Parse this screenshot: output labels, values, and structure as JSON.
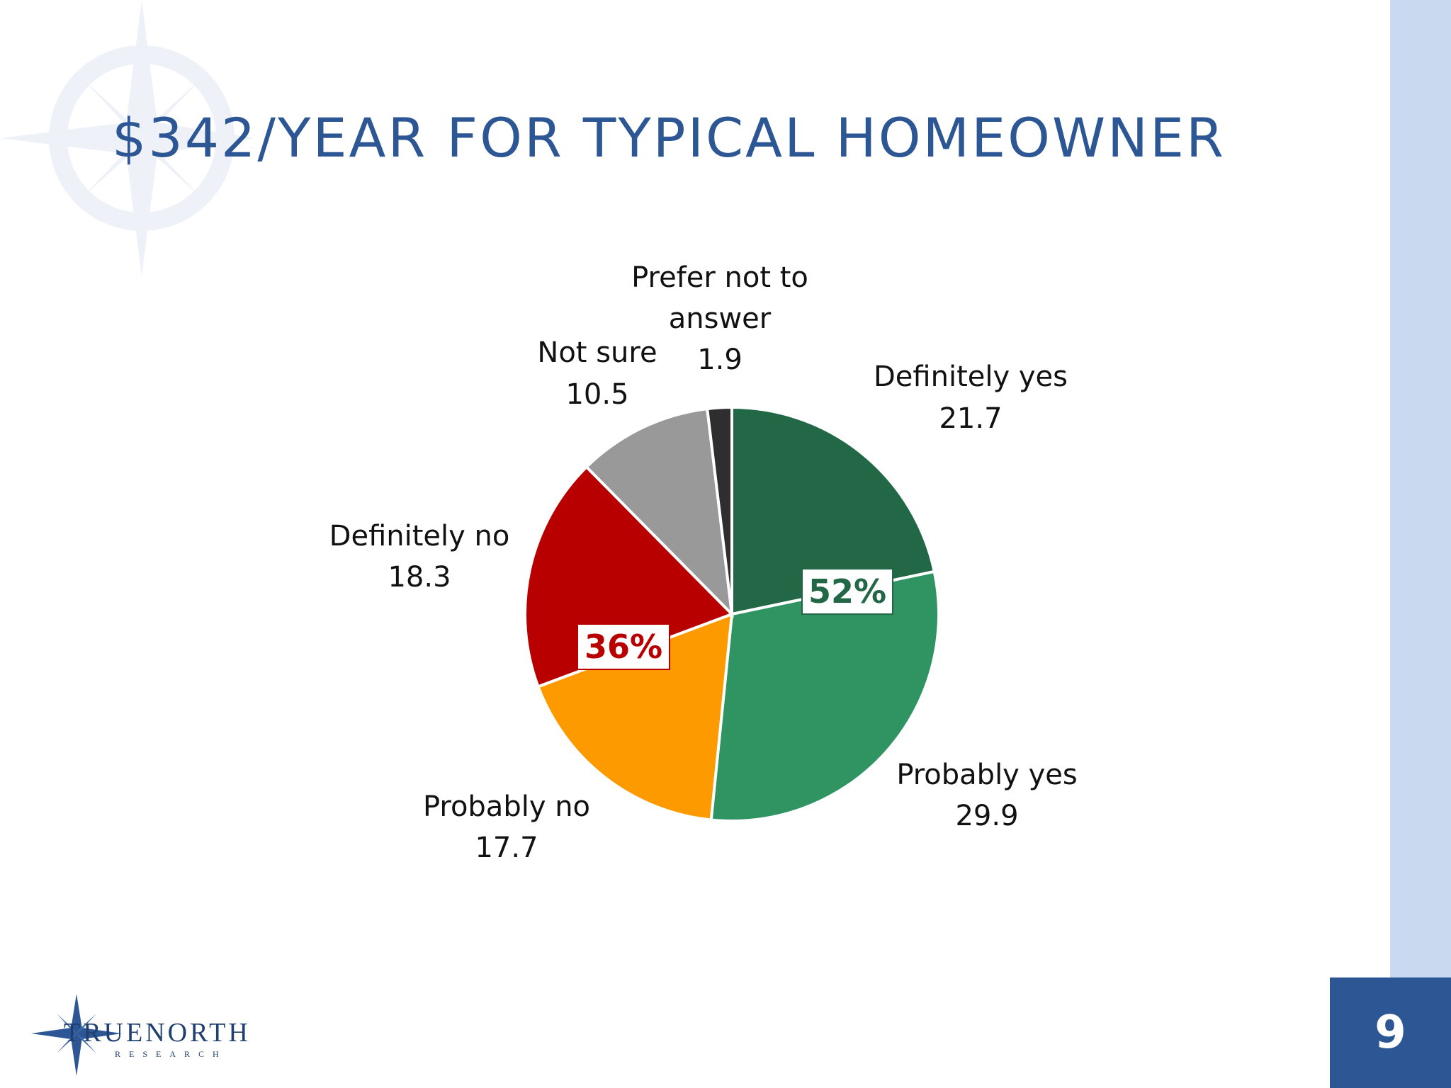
{
  "slide": {
    "title": "$342/YEAR FOR TYPICAL HOMEOWNER",
    "page_number": "9",
    "logo": {
      "wordmark": "TRUENORTH",
      "subword": "RESEARCH",
      "icon": "compass-star-icon"
    },
    "watermark_icon": "compass-rose-icon",
    "colors": {
      "title": "#2d5694",
      "side_band": "#c9daf0",
      "page_box": "#2d5694"
    }
  },
  "chart_data": {
    "type": "pie",
    "title": "",
    "slices": [
      {
        "name": "Definitely yes",
        "value": 21.7,
        "color": "#226847"
      },
      {
        "name": "Probably yes",
        "value": 29.9,
        "color": "#309462"
      },
      {
        "name": "Probably no",
        "value": 17.7,
        "color": "#fd9a00"
      },
      {
        "name": "Definitely no",
        "value": 18.3,
        "color": "#b80000"
      },
      {
        "name": "Not sure",
        "value": 10.5,
        "color": "#999999"
      },
      {
        "name": "Prefer not to answer",
        "value": 1.9,
        "color": "#2e2e2e"
      }
    ],
    "annotations": [
      {
        "text": "52%",
        "color": "#226847"
      },
      {
        "text": "36%",
        "color": "#b80000"
      }
    ]
  }
}
